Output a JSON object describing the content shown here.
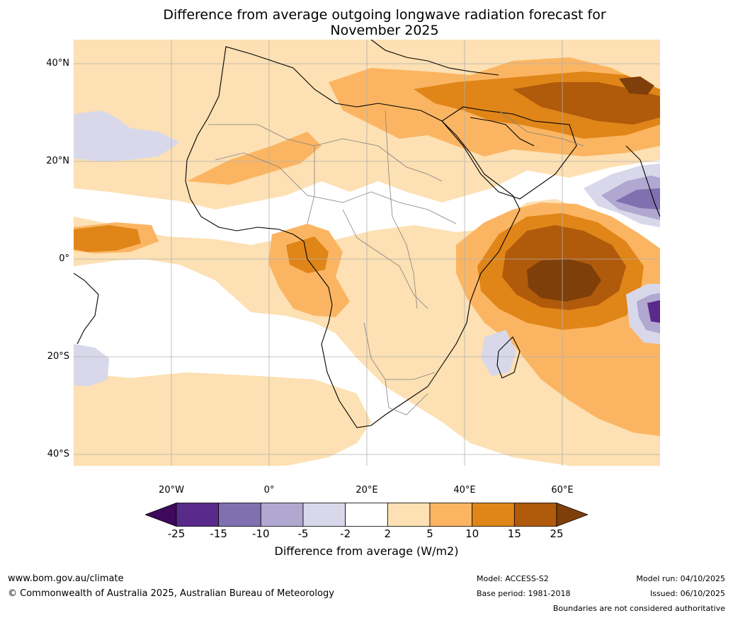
{
  "title": {
    "line1": "Difference from average outgoing longwave radiation forecast for",
    "line2": "November 2025"
  },
  "map": {
    "lat_labels": [
      "40°N",
      "20°N",
      "0°",
      "20°S",
      "40°S"
    ],
    "lon_labels": [
      "20°W",
      "0°",
      "20°E",
      "40°E",
      "60°E"
    ]
  },
  "colorbar": {
    "ticks": [
      "-25",
      "-15",
      "-10",
      "-5",
      "-2",
      "2",
      "5",
      "10",
      "15",
      "25"
    ],
    "colors": [
      "#3d0a5c",
      "#5a2a8a",
      "#8070b0",
      "#b0a8d0",
      "#d8d8ea",
      "#ffffff",
      "#fde0b3",
      "#fbb562",
      "#e08518",
      "#b05a0b",
      "#7f3f0a"
    ],
    "label": "Difference from average (W/m2)"
  },
  "footer": {
    "website": "www.bom.gov.au/climate",
    "copyright": "© Commonwealth of Australia 2025, Australian Bureau of Meteorology",
    "model": "Model: ACCESS-S2",
    "base_period": "Base period: 1981-2018",
    "model_run": "Model run: 04/10/2025",
    "issued": "Issued: 06/10/2025",
    "disclaimer": "Boundaries are not considered authoritative"
  }
}
